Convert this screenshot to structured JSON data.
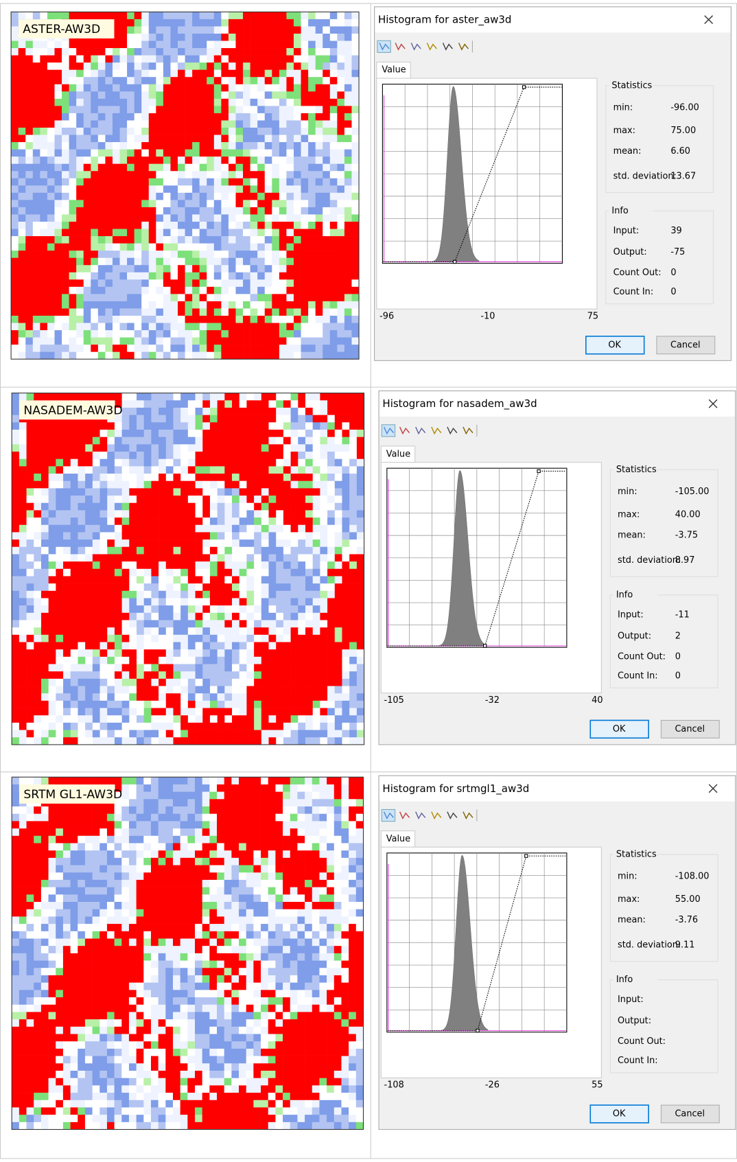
{
  "panels": [
    {
      "map_label": "ASTER-AW3D",
      "dialog": {
        "title": "Histogram for aster_aw3d",
        "tab": "Value",
        "statistics": {
          "heading": "Statistics",
          "rows": [
            [
              "min:",
              "-96.00"
            ],
            [
              "max:",
              "75.00"
            ],
            [
              "mean:",
              "6.60"
            ],
            [
              "std. deviation:",
              "13.67"
            ]
          ]
        },
        "info": {
          "heading": "Info",
          "rows": [
            [
              "Input:",
              "39"
            ],
            [
              "Output:",
              "-75"
            ],
            [
              "Count Out:",
              "0"
            ],
            [
              "Count In:",
              "0"
            ]
          ]
        },
        "axis_labels": [
          "-96",
          "-10",
          "75"
        ],
        "buttons": [
          "OK",
          "Cancel"
        ]
      }
    },
    {
      "map_label": "NASADEM-AW3D",
      "dialog": {
        "title": "Histogram for nasadem_aw3d",
        "tab": "Value",
        "statistics": {
          "heading": "Statistics",
          "rows": [
            [
              "min:",
              "-105.00"
            ],
            [
              "max:",
              "40.00"
            ],
            [
              "mean:",
              "-3.75"
            ],
            [
              "std. deviation:",
              "8.97"
            ]
          ]
        },
        "info": {
          "heading": "Info",
          "rows": [
            [
              "Input:",
              "-11"
            ],
            [
              "Output:",
              "2"
            ],
            [
              "Count Out:",
              "0"
            ],
            [
              "Count In:",
              "0"
            ]
          ]
        },
        "axis_labels": [
          "-105",
          "-32",
          "40"
        ],
        "buttons": [
          "OK",
          "Cancel"
        ]
      }
    },
    {
      "map_label": "SRTM GL1-AW3D",
      "dialog": {
        "title": "Histogram for srtmgl1_aw3d",
        "tab": "Value",
        "statistics": {
          "heading": "Statistics",
          "rows": [
            [
              "min:",
              "-108.00"
            ],
            [
              "max:",
              "55.00"
            ],
            [
              "mean:",
              "-3.76"
            ],
            [
              "std. deviation:",
              "9.11"
            ]
          ]
        },
        "info": {
          "heading": "Info",
          "rows": [
            [
              "Input:"
            ],
            [
              "Output:"
            ],
            [
              "Count Out:"
            ],
            [
              "Count In:"
            ]
          ]
        },
        "axis_labels": [
          "-108",
          "-26",
          "55"
        ],
        "buttons": [
          "OK",
          "Cancel"
        ]
      }
    }
  ]
}
